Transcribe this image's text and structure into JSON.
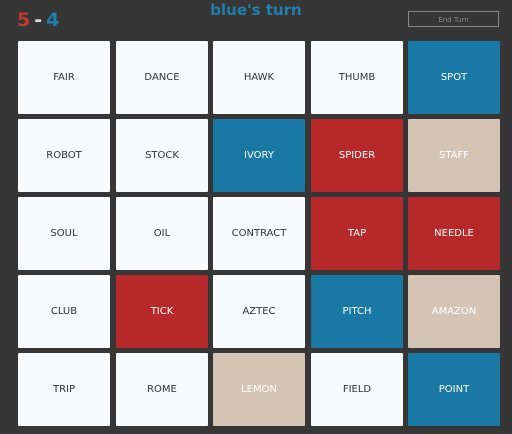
{
  "score": {
    "red": "5",
    "separator": "-",
    "blue": "4",
    "red_color": "#c0392b",
    "blue_color": "#1f7fae"
  },
  "turn": "blue's turn",
  "turn_color": "#1f7fae",
  "button": "End Turn",
  "cards": [
    {
      "word": "FAIR",
      "color": "#f7fbfd"
    },
    {
      "word": "DANCE",
      "color": "#f7fbfd"
    },
    {
      "word": "HAWK",
      "color": "#f7fbfd"
    },
    {
      "word": "THUMB",
      "color": "#f7fbfd"
    },
    {
      "word": "SPOT",
      "color": "#1a78a5"
    },
    {
      "word": "ROBOT",
      "color": "#f7fbfd"
    },
    {
      "word": "STOCK",
      "color": "#f7fbfd"
    },
    {
      "word": "IVORY",
      "color": "#1a78a5"
    },
    {
      "word": "SPIDER",
      "color": "#b7282b"
    },
    {
      "word": "STAFF",
      "color": "#d5c4b4"
    },
    {
      "word": "SOUL",
      "color": "#f7fbfd"
    },
    {
      "word": "OIL",
      "color": "#f7fbfd"
    },
    {
      "word": "CONTRACT",
      "color": "#f7fbfd"
    },
    {
      "word": "TAP",
      "color": "#b7282b"
    },
    {
      "word": "NEEDLE",
      "color": "#b7282b"
    },
    {
      "word": "CLUB",
      "color": "#f7fbfd"
    },
    {
      "word": "TICK",
      "color": "#b7282b"
    },
    {
      "word": "AZTEC",
      "color": "#f7fbfd"
    },
    {
      "word": "PITCH",
      "color": "#1a78a5"
    },
    {
      "word": "AMAZON",
      "color": "#d5c4b4"
    },
    {
      "word": "TRIP",
      "color": "#f7fbfd"
    },
    {
      "word": "ROME",
      "color": "#f7fbfd"
    },
    {
      "word": "LEMON",
      "color": "#d5c4b4"
    },
    {
      "word": "FIELD",
      "color": "#f7fbfd"
    },
    {
      "word": "POINT",
      "color": "#1a78a5"
    }
  ]
}
